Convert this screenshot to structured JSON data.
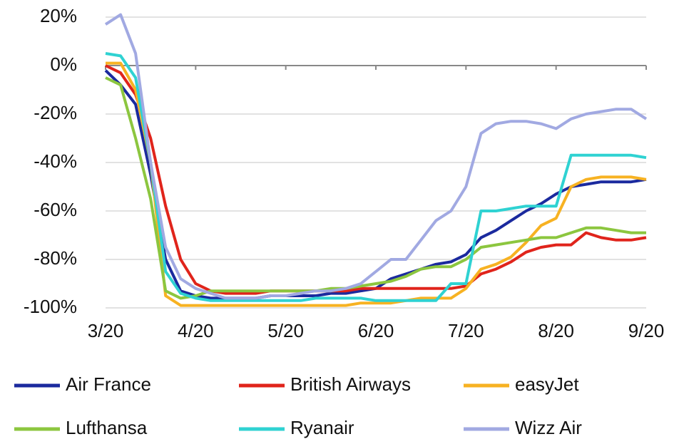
{
  "chart_data": {
    "type": "line",
    "categories": [
      "3/20",
      null,
      null,
      null,
      null,
      null,
      "4/20",
      null,
      null,
      null,
      null,
      null,
      "5/20",
      null,
      null,
      null,
      null,
      null,
      "6/20",
      null,
      null,
      null,
      null,
      null,
      "7/20",
      null,
      null,
      null,
      null,
      null,
      "8/20",
      null,
      null,
      null,
      null,
      null,
      "9/20"
    ],
    "ylim": [
      -100,
      20
    ],
    "yticks": [
      {
        "value": 20,
        "label": "20%"
      },
      {
        "value": 0,
        "label": "0%"
      },
      {
        "value": -20,
        "label": "-20%"
      },
      {
        "value": -40,
        "label": "-40%"
      },
      {
        "value": -60,
        "label": "-60%"
      },
      {
        "value": -80,
        "label": "-80%"
      },
      {
        "value": -100,
        "label": "-100%"
      }
    ],
    "grid": true,
    "legend": "bottom",
    "series": [
      {
        "name": "Air France",
        "color": "#1b2a9e",
        "values": [
          -2,
          -8,
          -16,
          -45,
          -80,
          -93,
          -95,
          -96,
          -96,
          -96,
          -96,
          -95,
          -95,
          -95,
          -95,
          -94,
          -94,
          -93,
          -92,
          -88,
          -86,
          -84,
          -82,
          -81,
          -78,
          -71,
          -68,
          -64,
          -60,
          -57,
          -53,
          -50,
          -49,
          -48,
          -48,
          -48,
          -47
        ]
      },
      {
        "name": "British Airways",
        "color": "#e0241b",
        "values": [
          0,
          -3,
          -12,
          -30,
          -58,
          -80,
          -90,
          -93,
          -94,
          -94,
          -94,
          -93,
          -93,
          -93,
          -93,
          -93,
          -93,
          -92,
          -92,
          -92,
          -92,
          -92,
          -92,
          -92,
          -91,
          -86,
          -84,
          -81,
          -77,
          -75,
          -74,
          -74,
          -69,
          -71,
          -72,
          -72,
          -71
        ]
      },
      {
        "name": "easyJet",
        "color": "#f7b222",
        "values": [
          1,
          1,
          -10,
          -40,
          -95,
          -99,
          -99,
          -99,
          -99,
          -99,
          -99,
          -99,
          -99,
          -99,
          -99,
          -99,
          -99,
          -98,
          -98,
          -98,
          -97,
          -96,
          -96,
          -96,
          -92,
          -84,
          -82,
          -79,
          -73,
          -66,
          -63,
          -50,
          -47,
          -46,
          -46,
          -46,
          -47
        ]
      },
      {
        "name": "Lufthansa",
        "color": "#8cc63f",
        "values": [
          -5,
          -8,
          -30,
          -55,
          -93,
          -96,
          -95,
          -93,
          -93,
          -93,
          -93,
          -93,
          -93,
          -93,
          -93,
          -92,
          -92,
          -91,
          -90,
          -89,
          -87,
          -84,
          -83,
          -83,
          -80,
          -75,
          -74,
          -73,
          -72,
          -71,
          -71,
          -69,
          -67,
          -67,
          -68,
          -69,
          -69
        ]
      },
      {
        "name": "Ryanair",
        "color": "#2fd2d2",
        "values": [
          5,
          4,
          -5,
          -40,
          -85,
          -94,
          -96,
          -97,
          -97,
          -97,
          -97,
          -97,
          -97,
          -97,
          -96,
          -96,
          -96,
          -96,
          -97,
          -97,
          -97,
          -97,
          -97,
          -90,
          -90,
          -60,
          -60,
          -59,
          -58,
          -58,
          -58,
          -37,
          -37,
          -37,
          -37,
          -37,
          -38
        ]
      },
      {
        "name": "Wizz Air",
        "color": "#a1a9e2",
        "values": [
          17,
          21,
          5,
          -40,
          -75,
          -88,
          -92,
          -94,
          -96,
          -96,
          -96,
          -95,
          -95,
          -94,
          -93,
          -93,
          -92,
          -90,
          -85,
          -80,
          -80,
          -72,
          -64,
          -60,
          -50,
          -28,
          -24,
          -23,
          -23,
          -24,
          -26,
          -22,
          -20,
          -19,
          -18,
          -18,
          -22
        ]
      }
    ]
  }
}
